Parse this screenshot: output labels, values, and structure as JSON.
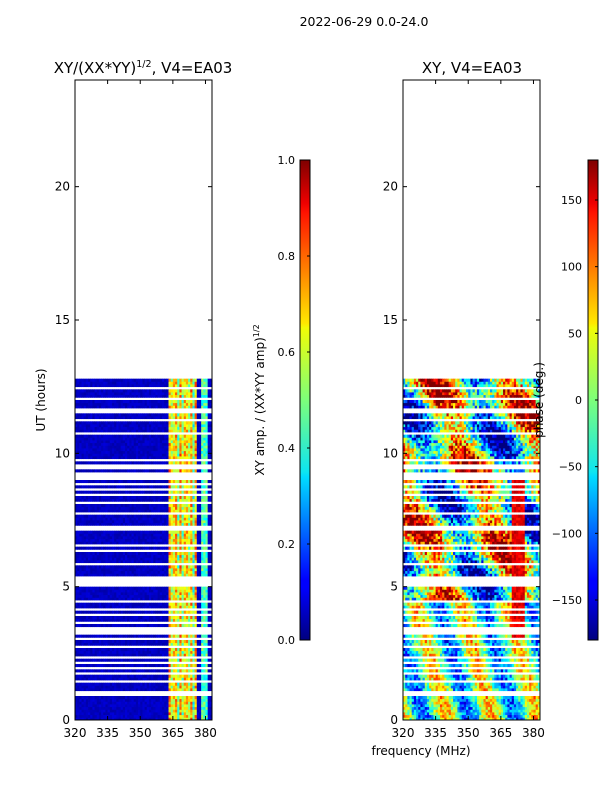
{
  "figure": {
    "suptitle": "2022-06-29 0.0-24.0",
    "xlabel_shared": "frequency (MHz)"
  },
  "chart_data": [
    {
      "type": "heatmap",
      "title_main": "XY/(XX*YY)",
      "title_exp": "1/2",
      "title_suffix": ", V4=EA03",
      "xlabel": "",
      "ylabel": "UT (hours)",
      "xlim": [
        320,
        383
      ],
      "ylim": [
        0,
        24
      ],
      "xticks": [
        320,
        335,
        350,
        365,
        380
      ],
      "yticks": [
        0,
        5,
        10,
        15,
        20
      ],
      "xtick_labels": [
        "320",
        "335",
        "350",
        "365",
        "380"
      ],
      "ytick_labels": [
        "0",
        "5",
        "10",
        "15",
        "20"
      ],
      "data_extent_hours": [
        0,
        12.8
      ],
      "colorbar": {
        "label_main": "XY amp. / (XX*YY amp)",
        "label_exp": "1/2",
        "range": [
          0.0,
          1.0
        ],
        "ticks": [
          0.0,
          0.2,
          0.4,
          0.6,
          0.8,
          1.0
        ],
        "tick_labels": [
          "0.0",
          "0.2",
          "0.4",
          "0.6",
          "0.8",
          "1.0"
        ]
      },
      "mode": "amplitude"
    },
    {
      "type": "heatmap",
      "title_main": "XY, V4=EA03",
      "title_exp": "",
      "title_suffix": "",
      "xlabel": "frequency (MHz)",
      "ylabel": "",
      "xlim": [
        320,
        383
      ],
      "ylim": [
        0,
        24
      ],
      "xticks": [
        320,
        335,
        350,
        365,
        380
      ],
      "yticks": [
        0,
        5,
        10,
        15,
        20
      ],
      "xtick_labels": [
        "320",
        "335",
        "350",
        "365",
        "380"
      ],
      "ytick_labels": [
        "0",
        "5",
        "10",
        "15",
        "20"
      ],
      "data_extent_hours": [
        0,
        12.8
      ],
      "colorbar": {
        "label_main": "phase (deg.)",
        "label_exp": "",
        "range": [
          -180,
          180
        ],
        "ticks": [
          -150,
          -100,
          -50,
          0,
          50,
          100,
          150
        ],
        "tick_labels": [
          "−150",
          "−100",
          "−50",
          "0",
          "50",
          "100",
          "150"
        ]
      },
      "mode": "phase"
    }
  ],
  "flagged_hours": [
    0.95,
    1.05,
    1.45,
    1.75,
    1.95,
    2.15,
    2.35,
    2.75,
    3.05,
    3.25,
    3.4,
    3.65,
    3.95,
    4.15,
    4.45,
    5.1,
    5.3,
    5.85,
    6.35,
    6.55,
    7.2,
    7.75,
    8.15,
    8.45,
    8.65,
    8.85,
    9.05,
    9.2,
    9.5,
    9.75,
    10.75,
    11.25,
    11.6,
    12.05,
    12.45
  ]
}
